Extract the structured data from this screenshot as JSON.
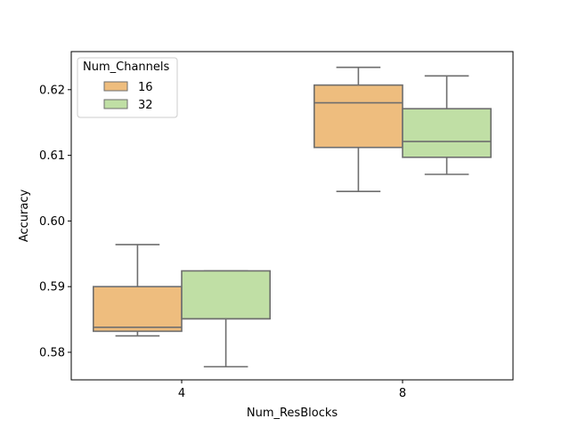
{
  "chart_data": {
    "type": "box",
    "xlabel": "Num_ResBlocks",
    "ylabel": "Accuracy",
    "categories": [
      "4",
      "8"
    ],
    "ylim": [
      0.5758,
      0.6258
    ],
    "yticks": [
      0.58,
      0.59,
      0.6,
      0.61,
      0.62
    ],
    "ytick_labels": [
      "0.58",
      "0.59",
      "0.60",
      "0.61",
      "0.62"
    ],
    "grid": false,
    "legend": {
      "title": "Num_Channels",
      "placement": "top-left"
    },
    "series": [
      {
        "name": "16",
        "color": "#EEBD7E",
        "boxes": [
          {
            "category": "4",
            "whisker_low": 0.5825,
            "q1": 0.5832,
            "median": 0.5838,
            "q3": 0.59,
            "whisker_high": 0.5964
          },
          {
            "category": "8",
            "whisker_low": 0.6045,
            "q1": 0.6112,
            "median": 0.618,
            "q3": 0.6207,
            "whisker_high": 0.6234
          }
        ]
      },
      {
        "name": "32",
        "color": "#C0DFA5",
        "boxes": [
          {
            "category": "4",
            "whisker_low": 0.5778,
            "q1": 0.5851,
            "median": 0.5851,
            "q3": 0.5924,
            "whisker_high": 0.5924
          },
          {
            "category": "8",
            "whisker_low": 0.6071,
            "q1": 0.6097,
            "median": 0.6121,
            "q3": 0.6171,
            "whisker_high": 0.6221
          }
        ]
      }
    ],
    "line_color": "#6E6E6E"
  }
}
